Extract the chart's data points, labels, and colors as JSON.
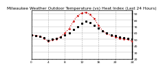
{
  "title": "Milwaukee Weather Outdoor Temperature (vs) Heat Index (Last 24 Hours)",
  "background_color": "#ffffff",
  "plot_bg_color": "#ffffff",
  "grid_color": "#aaaaaa",
  "xlim": [
    0,
    24
  ],
  "ylim": [
    20,
    95
  ],
  "yticks": [
    20,
    30,
    40,
    50,
    60,
    70,
    80,
    90
  ],
  "x": [
    0,
    1,
    2,
    3,
    4,
    5,
    6,
    7,
    8,
    9,
    10,
    11,
    12,
    13,
    14,
    15,
    16,
    17,
    18,
    19,
    20,
    21,
    22,
    23,
    24
  ],
  "temp": [
    57,
    56,
    55,
    53,
    48,
    50,
    52,
    54,
    57,
    60,
    65,
    70,
    75,
    78,
    76,
    72,
    68,
    63,
    60,
    57,
    56,
    54,
    53,
    52,
    50
  ],
  "heat_index": [
    57,
    56,
    55,
    52,
    47,
    49,
    51,
    54,
    60,
    67,
    78,
    87,
    91,
    92,
    89,
    82,
    72,
    63,
    59,
    56,
    54,
    52,
    51,
    50,
    47
  ],
  "temp_color": "#000000",
  "heat_color": "#cc0000",
  "line_width": 0.8,
  "marker_size": 1.8,
  "title_fontsize": 4.2,
  "tick_fontsize": 3.2,
  "grid_xtick_step": 4
}
